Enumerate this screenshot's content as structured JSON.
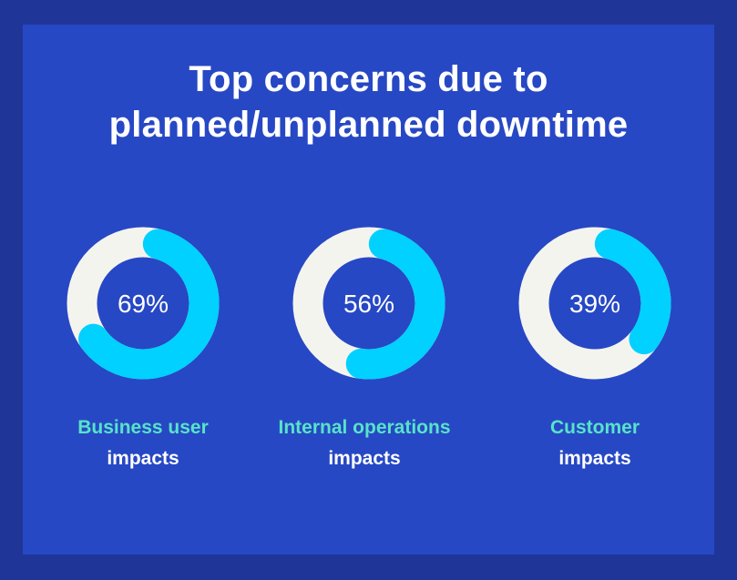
{
  "title": {
    "line1": "Top concerns due to",
    "line2": "planned/unplanned downtime"
  },
  "colors": {
    "background_outer": "#1f3597",
    "background_panel": "#2748c4",
    "ring_track": "#f4f4ef",
    "ring_fill": "#00d1ff",
    "label_accent": "#57e3c9",
    "label_text": "#ffffff"
  },
  "chart_data": {
    "type": "donut",
    "title": "Top concerns due to planned/unplanned downtime",
    "categories": [
      "Business user impacts",
      "Internal operations impacts",
      "Customer impacts"
    ],
    "values": [
      69,
      56,
      39
    ],
    "value_labels": [
      "69%",
      "56%",
      "39%"
    ],
    "unit": "%",
    "labels": [
      {
        "line1": "Business user",
        "line2": "impacts"
      },
      {
        "line1": "Internal operations",
        "line2": "impacts"
      },
      {
        "line1": "Customer",
        "line2": "impacts"
      }
    ]
  }
}
